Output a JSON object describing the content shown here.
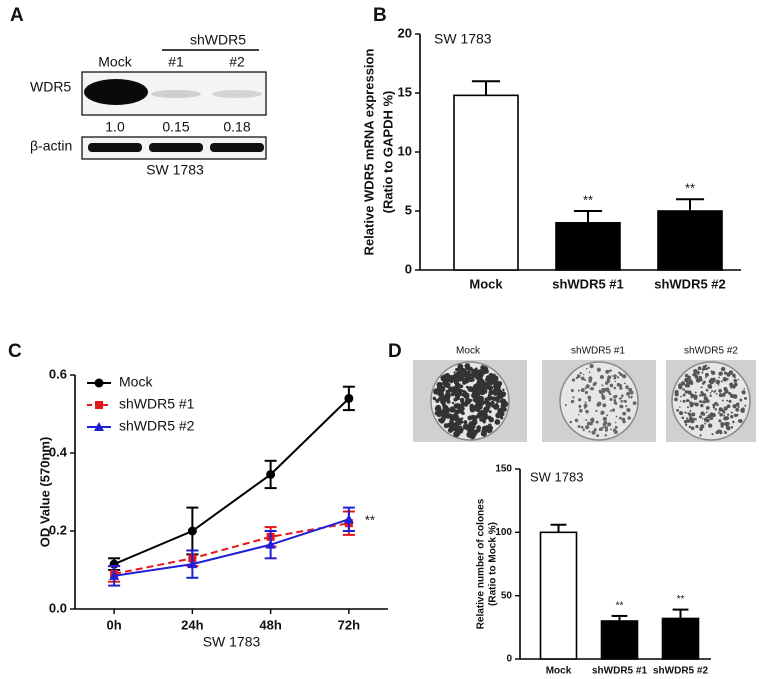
{
  "panel_labels": [
    "A",
    "B",
    "C",
    "D"
  ],
  "blot": {
    "group_label": "shWDR5",
    "lanes": [
      "Mock",
      "#1",
      "#2"
    ],
    "rows": [
      "WDR5",
      "β-actin"
    ],
    "ratios": [
      "1.0",
      "0.15",
      "0.18"
    ],
    "cell_line": "SW 1783"
  },
  "colonies": {
    "labels": [
      "Mock",
      "shWDR5 #1",
      "shWDR5 #2"
    ]
  },
  "chart_data": [
    {
      "type": "bar",
      "title": "SW 1783",
      "ylabel": [
        "Relative WDR5 mRNA expression",
        "(Ratio to GAPDH %)"
      ],
      "categories": [
        "Mock",
        "shWDR5 #1",
        "shWDR5 #2"
      ],
      "values": [
        14.8,
        4.0,
        5.0
      ],
      "errors": [
        1.2,
        1.0,
        1.0
      ],
      "colors": [
        "#ffffff",
        "#000000",
        "#000000"
      ],
      "ylim": [
        0,
        20
      ],
      "yticks": [
        0,
        5,
        10,
        15,
        20
      ],
      "annotations": [
        {
          "text": "**",
          "category": "shWDR5 #1"
        },
        {
          "text": "**",
          "category": "shWDR5 #2"
        }
      ]
    },
    {
      "type": "line",
      "xlabel": "SW 1783",
      "ylabel": [
        "OD Value (570nm)"
      ],
      "categories": [
        "0h",
        "24h",
        "48h",
        "72h"
      ],
      "series": [
        {
          "name": "Mock",
          "color": "#000000",
          "marker": "circle",
          "dashed": false,
          "values": [
            0.115,
            0.2,
            0.345,
            0.54
          ],
          "errors": [
            0.015,
            0.06,
            0.035,
            0.03
          ]
        },
        {
          "name": "shWDR5 #1",
          "color": "#e8161b",
          "marker": "square",
          "dashed": true,
          "values": [
            0.09,
            0.13,
            0.185,
            0.22
          ],
          "errors": [
            0.02,
            0.02,
            0.025,
            0.03
          ]
        },
        {
          "name": "shWDR5 #2",
          "color": "#1f1fd6",
          "marker": "triangle",
          "dashed": false,
          "values": [
            0.085,
            0.115,
            0.165,
            0.23
          ],
          "errors": [
            0.025,
            0.035,
            0.035,
            0.03
          ]
        }
      ],
      "ylim": [
        0,
        0.6
      ],
      "yticks": [
        {
          "value": 0,
          "label": "0.0"
        },
        0.2,
        0.4,
        0.6
      ],
      "legend": "upper left",
      "annotations": [
        {
          "text": "**",
          "category": "72h"
        }
      ]
    },
    {
      "type": "bar",
      "title": "SW 1783",
      "ylabel": [
        "Relative number of colones",
        "(Ratio to Mock %)"
      ],
      "categories": [
        "Mock",
        "shWDR5 #1",
        "shWDR5 #2"
      ],
      "values": [
        100,
        30,
        32
      ],
      "errors": [
        6,
        4,
        7
      ],
      "colors": [
        "#ffffff",
        "#000000",
        "#000000"
      ],
      "ylim": [
        0,
        150
      ],
      "yticks": [
        0,
        50,
        100,
        150
      ],
      "annotations": [
        {
          "text": "**",
          "category": "shWDR5 #1"
        },
        {
          "text": "**",
          "category": "shWDR5 #2"
        }
      ]
    }
  ]
}
